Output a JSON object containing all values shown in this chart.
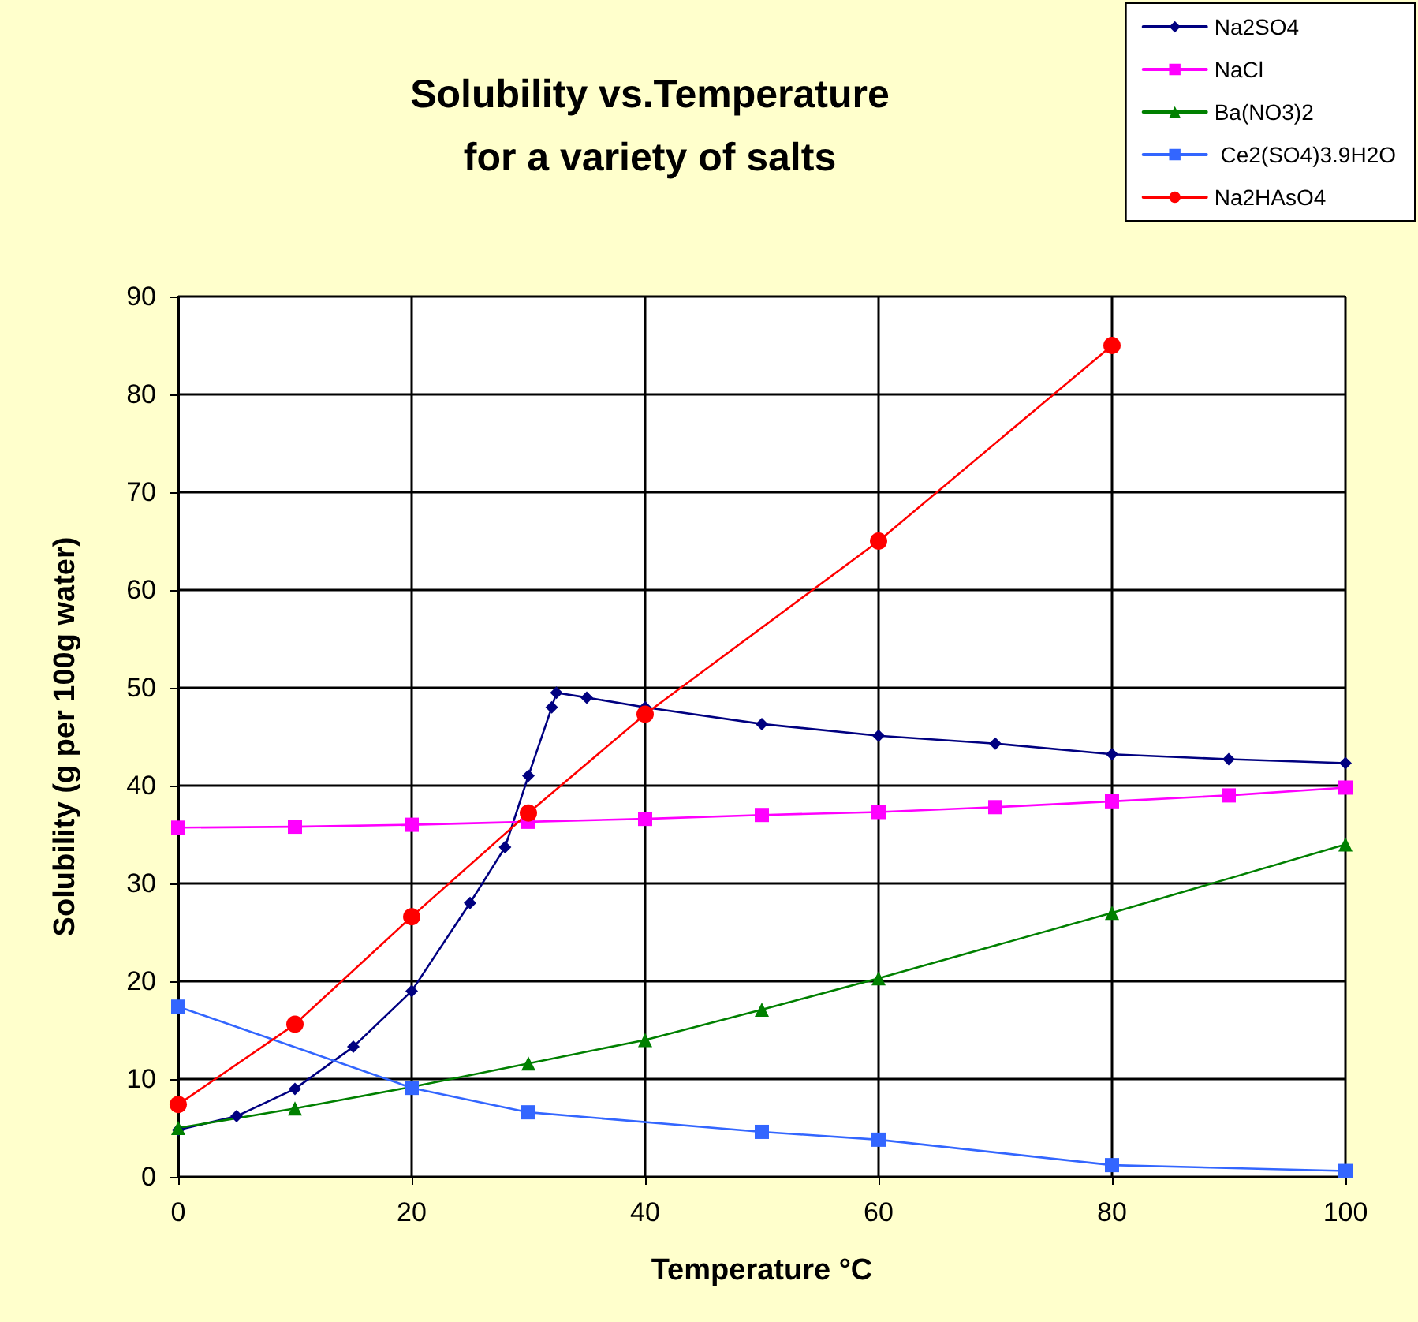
{
  "chart_data": {
    "type": "line",
    "title": "Solubility vs.Temperature\nfor a variety of salts",
    "xlabel": "Temperature °C",
    "ylabel": "Solubility (g per 100g water)",
    "xlim": [
      0,
      100
    ],
    "xticks": [
      0,
      20,
      40,
      60,
      80,
      100
    ],
    "ylim": [
      0,
      90
    ],
    "yticks": [
      0,
      10,
      20,
      30,
      40,
      50,
      60,
      70,
      80,
      90
    ],
    "grid": true,
    "legend": "top right",
    "line_style": "solid",
    "series": [
      {
        "name": "Na2SO4",
        "color": "#000080",
        "marker": "diamond",
        "x": [
          0,
          5,
          10,
          15,
          20,
          25,
          28,
          30,
          32,
          32.4,
          35,
          40,
          50,
          60,
          70,
          80,
          90,
          100
        ],
        "values": [
          4.8,
          6.2,
          9,
          13.3,
          19,
          28,
          33.7,
          41,
          48,
          49.5,
          49,
          48,
          46.3,
          45.1,
          44.3,
          43.2,
          42.7,
          42.3
        ]
      },
      {
        "name": "NaCl",
        "color": "#ff00ff",
        "marker": "square",
        "x": [
          0,
          10,
          20,
          30,
          40,
          50,
          60,
          70,
          80,
          90,
          100
        ],
        "values": [
          35.7,
          35.8,
          36,
          36.3,
          36.6,
          37,
          37.3,
          37.8,
          38.4,
          39,
          39.8
        ]
      },
      {
        "name": "Ba(NO3)2",
        "color": "#008000",
        "marker": "triangle",
        "x": [
          0,
          10,
          20,
          30,
          40,
          50,
          60,
          80,
          100
        ],
        "values": [
          5,
          7,
          9.2,
          11.6,
          14,
          17.1,
          20.3,
          27,
          34
        ]
      },
      {
        "name": " Ce2(SO4)3.9H2O",
        "color": "#3366ff",
        "marker": "square",
        "x": [
          0,
          20,
          30,
          50,
          60,
          80,
          100
        ],
        "values": [
          17.4,
          9.1,
          6.6,
          4.6,
          3.8,
          1.2,
          0.6
        ]
      },
      {
        "name": "Na2HAsO4",
        "color": "#ff0000",
        "marker": "circle",
        "x": [
          0,
          10,
          20,
          30,
          40,
          60,
          80
        ],
        "values": [
          7.4,
          15.6,
          26.6,
          37.2,
          47.3,
          65,
          85
        ]
      }
    ]
  }
}
